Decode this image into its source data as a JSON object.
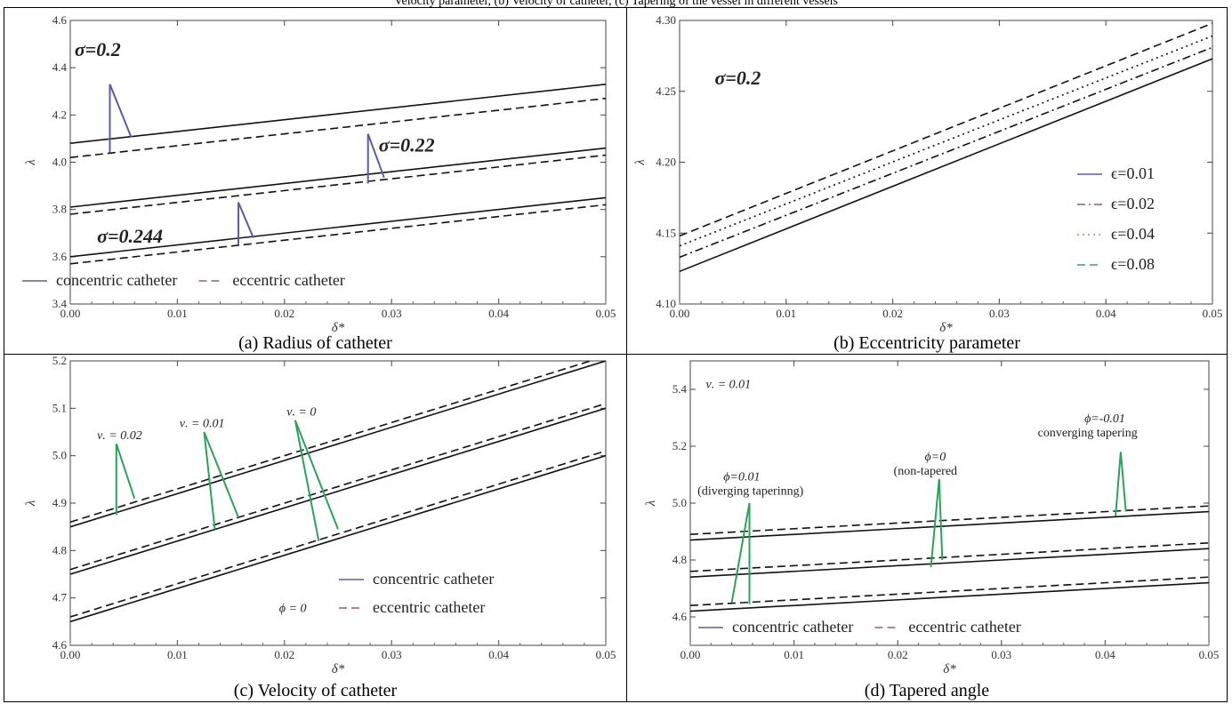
{
  "header": {
    "caption_fragment": "Velocity parameter, (b) Velocity of catheter, (c) Tapering of the vessel in different vessels"
  },
  "chart_data": [
    {
      "id": "a",
      "type": "line",
      "caption": "(a) Radius of catheter",
      "xlabel": "δ*",
      "ylabel": "λ",
      "xlim": [
        0,
        0.05
      ],
      "ylim": [
        3.4,
        4.6
      ],
      "xticks": [
        "0.00",
        "0.01",
        "0.02",
        "0.03",
        "0.04",
        "0.05"
      ],
      "yticks": [
        "3.4",
        "3.6",
        "3.8",
        "4.0",
        "4.2",
        "4.4",
        "4.6"
      ],
      "series": [
        {
          "group": "σ=0.2",
          "style": "solid",
          "x": [
            0,
            0.05
          ],
          "y": [
            4.08,
            4.33
          ]
        },
        {
          "group": "σ=0.2",
          "style": "dashed",
          "x": [
            0,
            0.05
          ],
          "y": [
            4.02,
            4.27
          ]
        },
        {
          "group": "σ=0.22",
          "style": "solid",
          "x": [
            0,
            0.05
          ],
          "y": [
            3.81,
            4.06
          ]
        },
        {
          "group": "σ=0.22",
          "style": "dashed",
          "x": [
            0,
            0.05
          ],
          "y": [
            3.78,
            4.03
          ]
        },
        {
          "group": "σ=0.244",
          "style": "solid",
          "x": [
            0,
            0.05
          ],
          "y": [
            3.6,
            3.85
          ]
        },
        {
          "group": "σ=0.244",
          "style": "dashed",
          "x": [
            0,
            0.05
          ],
          "y": [
            3.57,
            3.82
          ]
        }
      ],
      "annotations": [
        {
          "text": "σ=0.2",
          "x": 0.0004,
          "y": 4.45,
          "cls": "ann-big",
          "pointer": [
            [
              0.0037,
              4.04
            ],
            [
              0.0037,
              4.33
            ],
            [
              0.0057,
              4.105
            ]
          ]
        },
        {
          "text": "σ=0.22",
          "x": 0.0288,
          "y": 4.045,
          "cls": "ann-big",
          "pointer": [
            [
              0.0278,
              3.91
            ],
            [
              0.0278,
              4.12
            ],
            [
              0.0293,
              3.935
            ]
          ]
        },
        {
          "text": "σ=0.244",
          "x": 0.0025,
          "y": 3.66,
          "cls": "ann-big",
          "pointer": [
            [
              0.0157,
              3.65
            ],
            [
              0.0157,
              3.83
            ],
            [
              0.0171,
              3.68
            ]
          ]
        }
      ],
      "legend": [
        {
          "label": "concentric catheter",
          "style": "solid",
          "color": "#5b5ba8"
        },
        {
          "label": "eccentric catheter",
          "style": "dashed",
          "color": "#a05a6a"
        }
      ],
      "pointer_color": "#5b5ba8"
    },
    {
      "id": "b",
      "type": "line",
      "caption": "(b) Eccentricity parameter",
      "xlabel": "δ*",
      "ylabel": "λ",
      "xlim": [
        0,
        0.05
      ],
      "ylim": [
        4.1,
        4.3
      ],
      "xticks": [
        "0.00",
        "0.01",
        "0.02",
        "0.03",
        "0.04",
        "0.05"
      ],
      "yticks": [
        "4.10",
        "4.15",
        "4.20",
        "4.25",
        "4.30"
      ],
      "series": [
        {
          "name": "ϵ=0.01",
          "style": "solid",
          "x": [
            0,
            0.05
          ],
          "y": [
            4.123,
            4.273
          ]
        },
        {
          "name": "ϵ=0.02",
          "style": "dashdot",
          "x": [
            0,
            0.05
          ],
          "y": [
            4.133,
            4.281
          ]
        },
        {
          "name": "ϵ=0.04",
          "style": "dotted",
          "x": [
            0,
            0.05
          ],
          "y": [
            4.141,
            4.289
          ]
        },
        {
          "name": "ϵ=0.08",
          "style": "dashed",
          "x": [
            0,
            0.05
          ],
          "y": [
            4.148,
            4.298
          ]
        }
      ],
      "annotations": [
        {
          "text": "σ=0.2",
          "x": 0.0033,
          "y": 4.255,
          "cls": "ann-big"
        }
      ],
      "legend": [
        {
          "label": "ϵ=0.01",
          "style": "solid",
          "color": "#5b5ba8"
        },
        {
          "label": "ϵ=0.02",
          "style": "dashdot",
          "color": "#a05a6a"
        },
        {
          "label": "ϵ=0.04",
          "style": "dotted",
          "color": "#8aa040"
        },
        {
          "label": "ϵ=0.08",
          "style": "dashed",
          "color": "#3aa070"
        }
      ]
    },
    {
      "id": "c",
      "type": "line",
      "caption": "(c) Velocity of catheter",
      "xlabel": "δ*",
      "ylabel": "λ",
      "xlim": [
        0,
        0.05
      ],
      "ylim": [
        4.6,
        5.2
      ],
      "xticks": [
        "0.00",
        "0.01",
        "0.02",
        "0.03",
        "0.04",
        "0.05"
      ],
      "yticks": [
        "4.6",
        "4.7",
        "4.8",
        "4.9",
        "5.0",
        "5.1",
        "5.2"
      ],
      "series": [
        {
          "group": "ν. = 0.02",
          "style": "solid",
          "x": [
            0,
            0.05
          ],
          "y": [
            4.85,
            5.2
          ]
        },
        {
          "group": "ν. = 0.02",
          "style": "dashed",
          "x": [
            0,
            0.05
          ],
          "y": [
            4.86,
            5.21
          ]
        },
        {
          "group": "ν. = 0.01",
          "style": "solid",
          "x": [
            0,
            0.05
          ],
          "y": [
            4.75,
            5.1
          ]
        },
        {
          "group": "ν. = 0.01",
          "style": "dashed",
          "x": [
            0,
            0.05
          ],
          "y": [
            4.76,
            5.11
          ]
        },
        {
          "group": "ν. = 0",
          "style": "solid",
          "x": [
            0,
            0.05
          ],
          "y": [
            4.65,
            5.0
          ]
        },
        {
          "group": "ν. = 0",
          "style": "dashed",
          "x": [
            0,
            0.05
          ],
          "y": [
            4.66,
            5.01
          ]
        }
      ],
      "annotations": [
        {
          "text": "ν. = 0.02",
          "x": 0.0025,
          "y": 5.035,
          "cls": "ann-it",
          "pointer": [
            [
              0.0043,
              4.875
            ],
            [
              0.0043,
              5.025
            ],
            [
              0.006,
              4.91
            ]
          ]
        },
        {
          "text": "ν. = 0.01",
          "x": 0.0102,
          "y": 5.06,
          "cls": "ann-it",
          "pointer": [
            [
              0.0135,
              4.845
            ],
            [
              0.0125,
              5.05
            ],
            [
              0.0157,
              4.87
            ]
          ]
        },
        {
          "text": "ν. = 0",
          "x": 0.0202,
          "y": 5.085,
          "cls": "ann-it",
          "pointer": [
            [
              0.0232,
              4.82
            ],
            [
              0.021,
              5.075
            ],
            [
              0.025,
              4.845
            ]
          ]
        },
        {
          "text": "ϕ = 0",
          "x": 0.0195,
          "y": 4.67,
          "cls": "ann-it"
        }
      ],
      "legend": [
        {
          "label": "concentric catheter",
          "style": "solid",
          "color": "#5b5ba8"
        },
        {
          "label": "eccentric catheter",
          "style": "dashed",
          "color": "#a05a6a"
        }
      ],
      "pointer_color": "#2fa05a"
    },
    {
      "id": "d",
      "type": "line",
      "caption": "(d) Tapered angle",
      "xlabel": "δ*",
      "ylabel": "λ",
      "xlim": [
        0,
        0.05
      ],
      "ylim": [
        4.5,
        5.5
      ],
      "xticks": [
        "0.00",
        "0.01",
        "0.02",
        "0.03",
        "0.04",
        "0.05"
      ],
      "yticks": [
        "4.6",
        "4.8",
        "5.0",
        "5.2",
        "5.4"
      ],
      "series": [
        {
          "group": "ϕ=-0.01",
          "style": "solid",
          "x": [
            0,
            0.05
          ],
          "y": [
            4.87,
            4.97
          ]
        },
        {
          "group": "ϕ=-0.01",
          "style": "dashed",
          "x": [
            0,
            0.05
          ],
          "y": [
            4.89,
            4.99
          ]
        },
        {
          "group": "ϕ=0",
          "style": "solid",
          "x": [
            0,
            0.05
          ],
          "y": [
            4.74,
            4.84
          ]
        },
        {
          "group": "ϕ=0",
          "style": "dashed",
          "x": [
            0,
            0.05
          ],
          "y": [
            4.76,
            4.86
          ]
        },
        {
          "group": "ϕ=0.01",
          "style": "solid",
          "x": [
            0,
            0.05
          ],
          "y": [
            4.62,
            4.72
          ]
        },
        {
          "group": "ϕ=0.01",
          "style": "dashed",
          "x": [
            0,
            0.05
          ],
          "y": [
            4.64,
            4.74
          ]
        }
      ],
      "annotations": [
        {
          "text": "ν. = 0.01",
          "x": 0.0015,
          "y": 5.405,
          "cls": "ann-it"
        },
        {
          "text": "ϕ=0.01",
          "x": 0.0032,
          "y": 5.08,
          "cls": "ann-it"
        },
        {
          "text": "(diverging taperinng)",
          "x": 0.0007,
          "y": 5.03,
          "cls": "ann-sm",
          "pointer": [
            [
              0.004,
              4.65
            ],
            [
              0.0057,
              5.0
            ],
            [
              0.0057,
              4.645
            ]
          ]
        },
        {
          "text": "ϕ=0",
          "x": 0.0226,
          "y": 5.15,
          "cls": "ann-it"
        },
        {
          "text": "(non-tapered",
          "x": 0.0196,
          "y": 5.1,
          "cls": "ann-sm",
          "pointer": [
            [
              0.0232,
              4.775
            ],
            [
              0.024,
              5.085
            ],
            [
              0.0243,
              4.8
            ]
          ]
        },
        {
          "text": "ϕ=-0.01",
          "x": 0.038,
          "y": 5.285,
          "cls": "ann-it"
        },
        {
          "text": "converging tapering",
          "x": 0.0335,
          "y": 5.235,
          "cls": "ann-sm",
          "pointer": [
            [
              0.041,
              4.955
            ],
            [
              0.0415,
              5.18
            ],
            [
              0.042,
              4.97
            ]
          ]
        }
      ],
      "legend": [
        {
          "label": "concentric catheter",
          "style": "solid",
          "color": "#5b5ba8"
        },
        {
          "label": "eccentric catheter",
          "style": "dashed",
          "color": "#a05a6a"
        }
      ],
      "pointer_color": "#2fa05a"
    }
  ]
}
